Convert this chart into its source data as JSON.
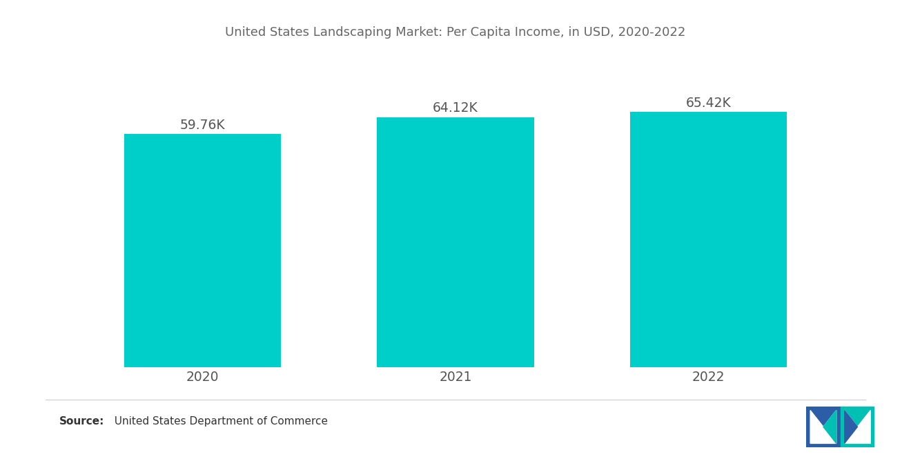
{
  "title": "United States Landscaping Market: Per Capita Income, in USD, 2020-2022",
  "categories": [
    "2020",
    "2021",
    "2022"
  ],
  "values": [
    59760,
    64120,
    65420
  ],
  "labels": [
    "59.76K",
    "64.12K",
    "65.42K"
  ],
  "bar_color": "#00CEC9",
  "background_color": "#ffffff",
  "title_color": "#666666",
  "label_color": "#555555",
  "tick_color": "#555555",
  "ylim": [
    0,
    80000
  ],
  "bar_width": 0.62,
  "title_fontsize": 13.0,
  "label_fontsize": 13.5,
  "tick_fontsize": 13.5,
  "source_bold": "Source:",
  "source_normal": "  United States Department of Commerce",
  "source_fontsize": 11.0
}
